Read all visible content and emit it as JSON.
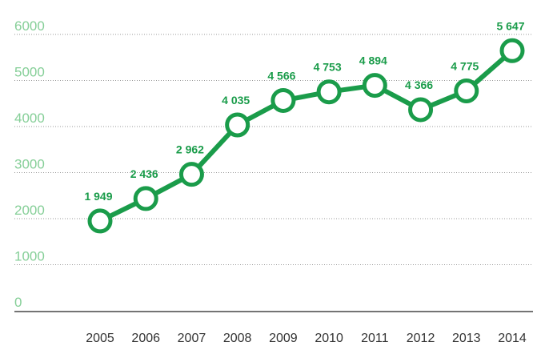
{
  "chart_data": {
    "type": "line",
    "categories": [
      "2005",
      "2006",
      "2007",
      "2008",
      "2009",
      "2010",
      "2011",
      "2012",
      "2013",
      "2014"
    ],
    "series": [
      {
        "color": "#1a9c4a",
        "values": [
          1949,
          2436,
          2962,
          4035,
          4566,
          4753,
          4894,
          4366,
          4775,
          5647
        ],
        "value_labels": [
          "1 949",
          "2 436",
          "2 962",
          "4 035",
          "4 566",
          "4 753",
          "4 894",
          "4 366",
          "4 775",
          "5 647"
        ]
      }
    ],
    "ylim": [
      0,
      6000
    ],
    "yticks": [
      0,
      1000,
      2000,
      3000,
      4000,
      5000,
      6000
    ],
    "grid": true
  }
}
